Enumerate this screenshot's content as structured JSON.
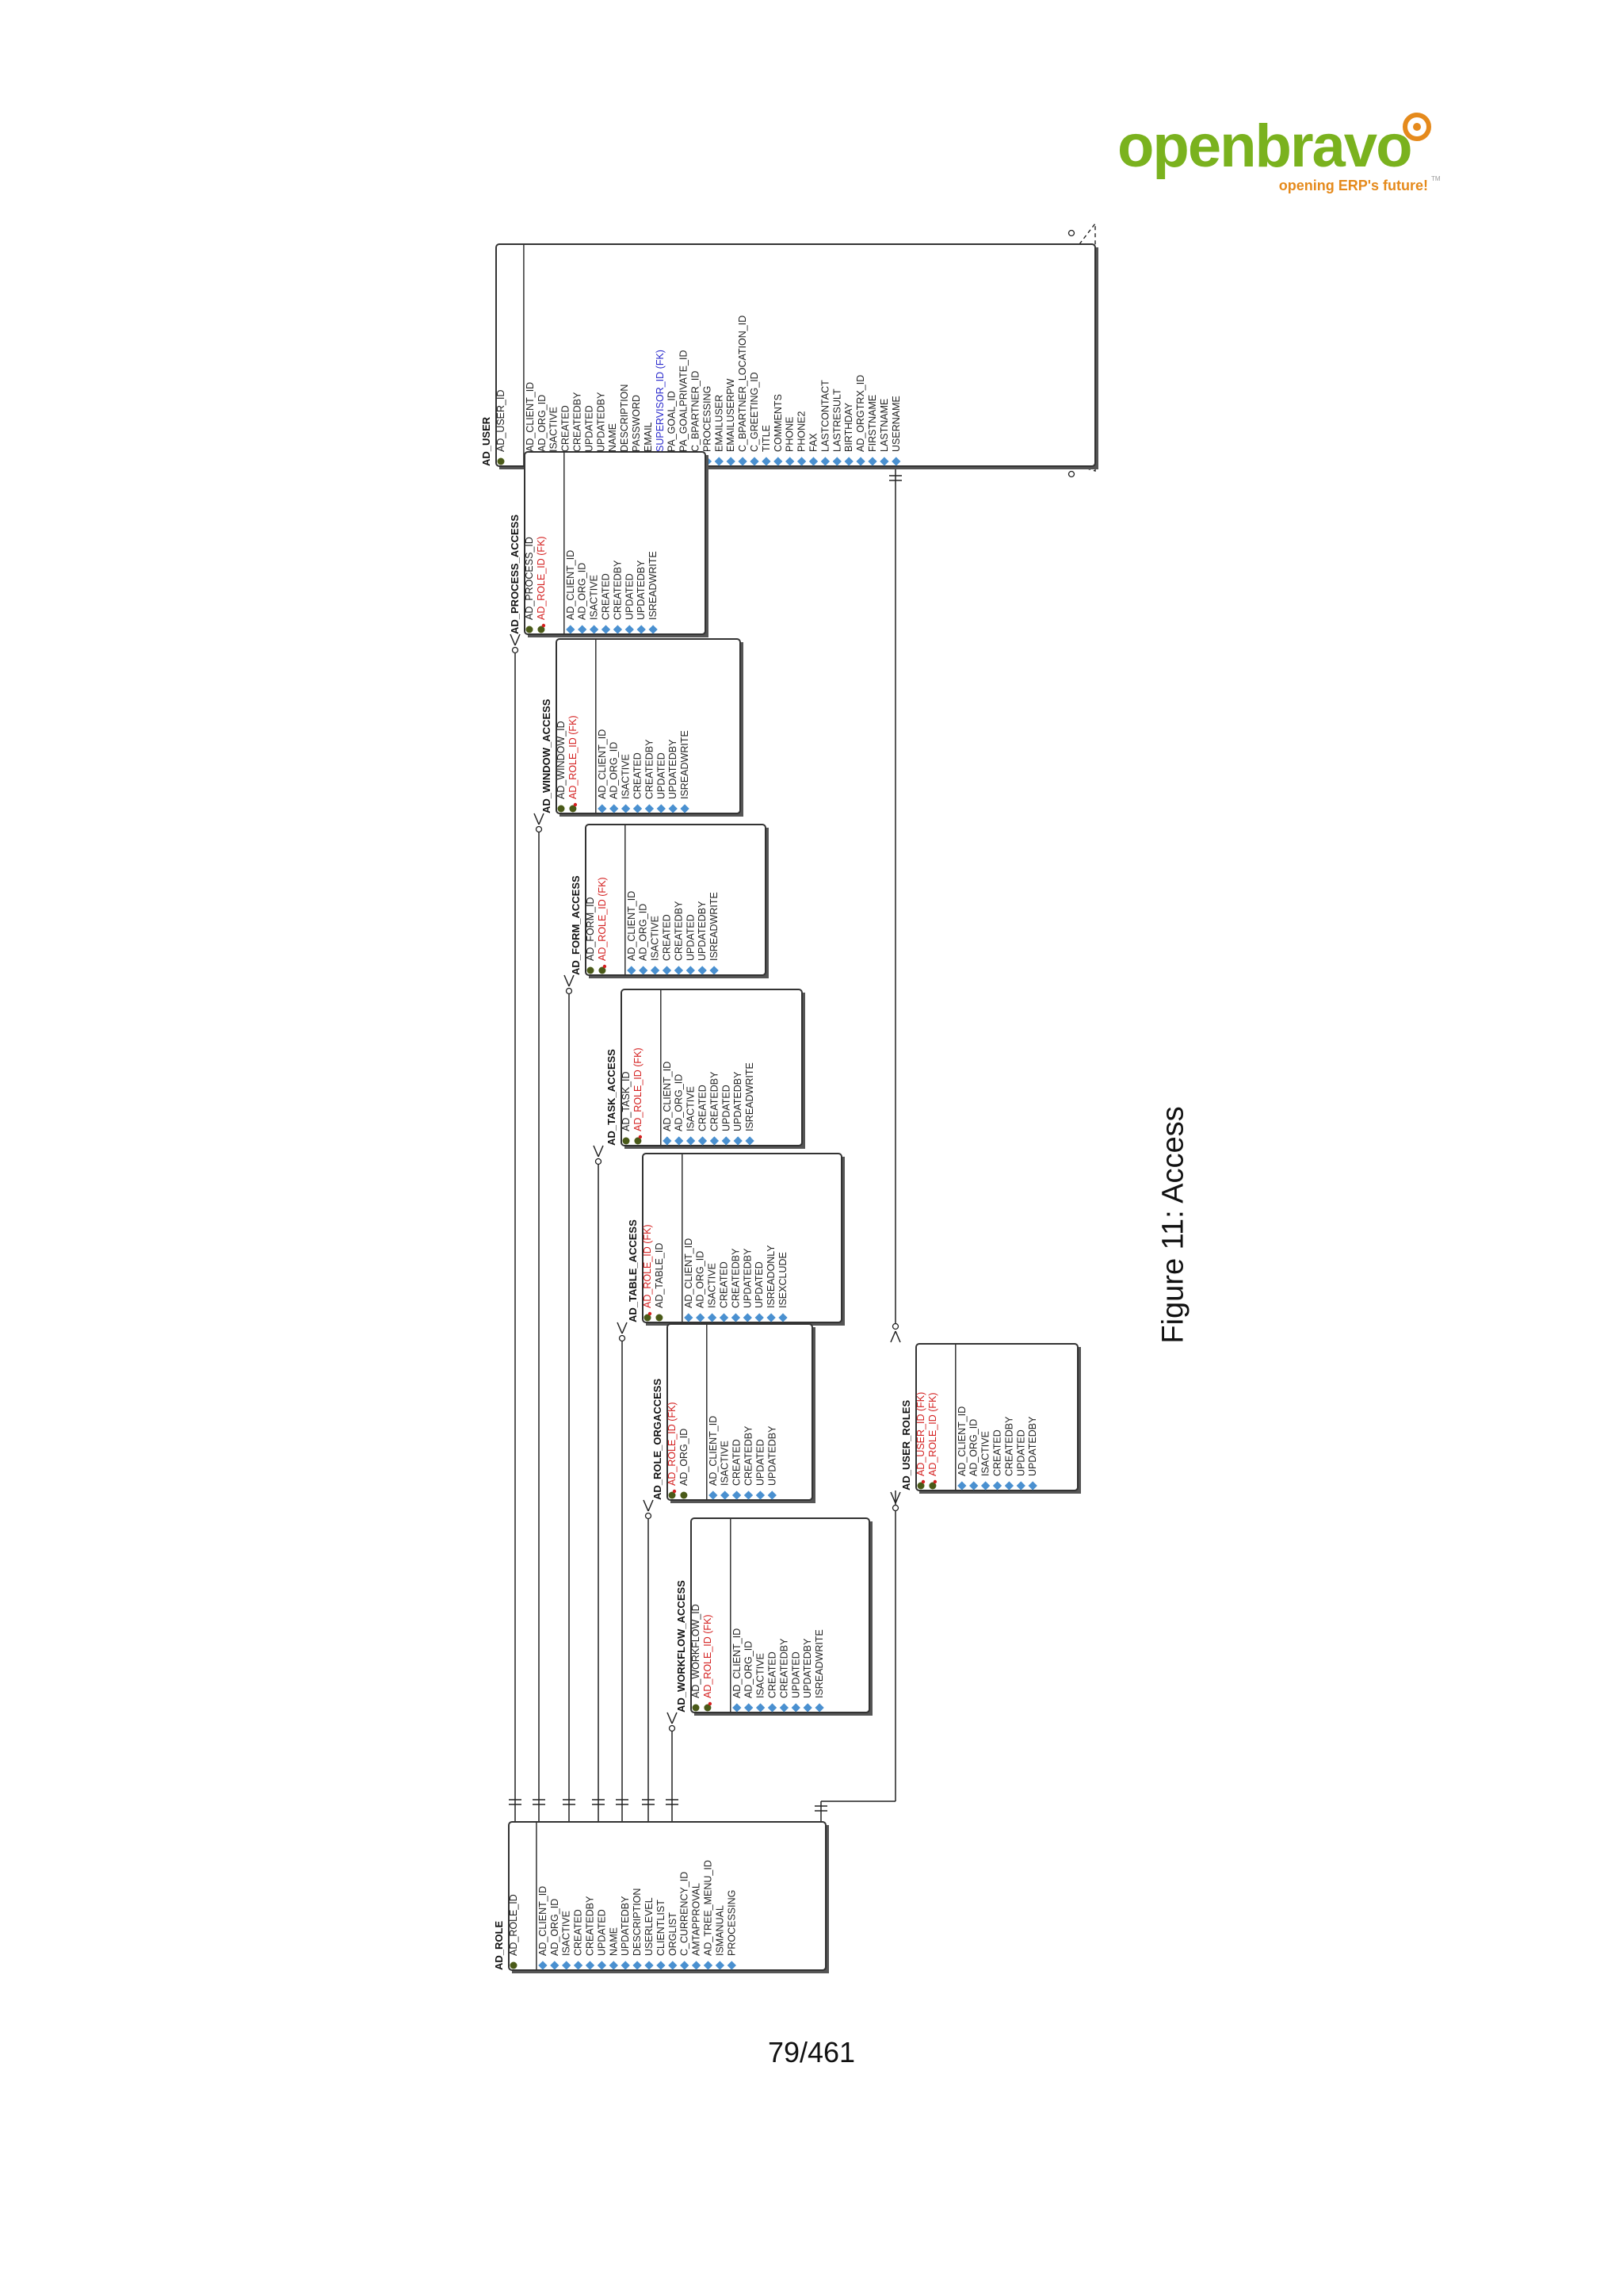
{
  "logo": {
    "wordmark": "openbravo",
    "tagline": "opening ERP's future!",
    "tm": "TM"
  },
  "caption": "Figure 11: Access",
  "page_number": "79/461",
  "colors": {
    "pk": "#4a5a18",
    "fk": "#d42020",
    "fk_blue": "#2a2acc",
    "attr": "#4a90d0",
    "line": "#222222",
    "logo_green": "#7ab21e",
    "logo_orange": "#e58a1c"
  },
  "tables": {
    "ad_user": {
      "name": "AD_USER",
      "keys": [
        {
          "label": "AD_USER_ID",
          "kind": "pk"
        }
      ],
      "columns": [
        {
          "label": "AD_CLIENT_ID"
        },
        {
          "label": "AD_ORG_ID"
        },
        {
          "label": "ISACTIVE"
        },
        {
          "label": "CREATED"
        },
        {
          "label": "CREATEDBY"
        },
        {
          "label": "UPDATED"
        },
        {
          "label": "UPDATEDBY"
        },
        {
          "label": "NAME"
        },
        {
          "label": "DESCRIPTION"
        },
        {
          "label": "PASSWORD"
        },
        {
          "label": "EMAIL"
        },
        {
          "label": "SUPERVISOR_ID (FK)",
          "kind": "fk_blue"
        },
        {
          "label": "PA_GOAL_ID"
        },
        {
          "label": "PA_GOALPRIVATE_ID"
        },
        {
          "label": "C_BPARTNER_ID"
        },
        {
          "label": "PROCESSING"
        },
        {
          "label": "EMAILUSER"
        },
        {
          "label": "EMAILUSERPW"
        },
        {
          "label": "C_BPARTNER_LOCATION_ID"
        },
        {
          "label": "C_GREETING_ID"
        },
        {
          "label": "TITLE"
        },
        {
          "label": "COMMENTS"
        },
        {
          "label": "PHONE"
        },
        {
          "label": "PHONE2"
        },
        {
          "label": "FAX"
        },
        {
          "label": "LASTCONTACT"
        },
        {
          "label": "LASTRESULT"
        },
        {
          "label": "BIRTHDAY"
        },
        {
          "label": "AD_ORGTRX_ID"
        },
        {
          "label": "FIRSTNAME"
        },
        {
          "label": "LASTNAME"
        },
        {
          "label": "USERNAME"
        }
      ]
    },
    "ad_process_access": {
      "name": "AD_PROCESS_ACCESS",
      "keys": [
        {
          "label": "AD_PROCESS_ID",
          "kind": "pk"
        },
        {
          "label": "AD_ROLE_ID (FK)",
          "kind": "fk"
        }
      ],
      "columns": [
        {
          "label": "AD_CLIENT_ID"
        },
        {
          "label": "AD_ORG_ID"
        },
        {
          "label": "ISACTIVE"
        },
        {
          "label": "CREATED"
        },
        {
          "label": "CREATEDBY"
        },
        {
          "label": "UPDATED"
        },
        {
          "label": "UPDATEDBY"
        },
        {
          "label": "ISREADWRITE"
        }
      ]
    },
    "ad_window_access": {
      "name": "AD_WINDOW_ACCESS",
      "keys": [
        {
          "label": "AD_WINDOW_ID",
          "kind": "pk"
        },
        {
          "label": "AD_ROLE_ID (FK)",
          "kind": "fk"
        }
      ],
      "columns": [
        {
          "label": "AD_CLIENT_ID"
        },
        {
          "label": "AD_ORG_ID"
        },
        {
          "label": "ISACTIVE"
        },
        {
          "label": "CREATED"
        },
        {
          "label": "CREATEDBY"
        },
        {
          "label": "UPDATED"
        },
        {
          "label": "UPDATEDBY"
        },
        {
          "label": "ISREADWRITE"
        }
      ]
    },
    "ad_form_access": {
      "name": "AD_FORM_ACCESS",
      "keys": [
        {
          "label": "AD_FORM_ID",
          "kind": "pk"
        },
        {
          "label": "AD_ROLE_ID (FK)",
          "kind": "fk"
        }
      ],
      "columns": [
        {
          "label": "AD_CLIENT_ID"
        },
        {
          "label": "AD_ORG_ID"
        },
        {
          "label": "ISACTIVE"
        },
        {
          "label": "CREATED"
        },
        {
          "label": "CREATEDBY"
        },
        {
          "label": "UPDATED"
        },
        {
          "label": "UPDATEDBY"
        },
        {
          "label": "ISREADWRITE"
        }
      ]
    },
    "ad_task_access": {
      "name": "AD_TASK_ACCESS",
      "keys": [
        {
          "label": "AD_TASK_ID",
          "kind": "pk"
        },
        {
          "label": "AD_ROLE_ID (FK)",
          "kind": "fk"
        }
      ],
      "columns": [
        {
          "label": "AD_CLIENT_ID"
        },
        {
          "label": "AD_ORG_ID"
        },
        {
          "label": "ISACTIVE"
        },
        {
          "label": "CREATED"
        },
        {
          "label": "CREATEDBY"
        },
        {
          "label": "UPDATED"
        },
        {
          "label": "UPDATEDBY"
        },
        {
          "label": "ISREADWRITE"
        }
      ]
    },
    "ad_table_access": {
      "name": "AD_TABLE_ACCESS",
      "keys": [
        {
          "label": "AD_ROLE_ID (FK)",
          "kind": "fk"
        },
        {
          "label": "AD_TABLE_ID",
          "kind": "pk"
        }
      ],
      "columns": [
        {
          "label": "AD_CLIENT_ID"
        },
        {
          "label": "AD_ORG_ID"
        },
        {
          "label": "ISACTIVE"
        },
        {
          "label": "CREATED"
        },
        {
          "label": "CREATEDBY"
        },
        {
          "label": "UPDATEDBY"
        },
        {
          "label": "UPDATED"
        },
        {
          "label": "ISREADONLY"
        },
        {
          "label": "ISEXCLUDE"
        }
      ]
    },
    "ad_role_orgaccess": {
      "name": "AD_ROLE_ORGACCESS",
      "keys": [
        {
          "label": "AD_ROLE_ID (FK)",
          "kind": "fk"
        },
        {
          "label": "AD_ORG_ID",
          "kind": "pk"
        }
      ],
      "columns": [
        {
          "label": "AD_CLIENT_ID"
        },
        {
          "label": "ISACTIVE"
        },
        {
          "label": "CREATED"
        },
        {
          "label": "CREATEDBY"
        },
        {
          "label": "UPDATED"
        },
        {
          "label": "UPDATEDBY"
        }
      ]
    },
    "ad_workflow_access": {
      "name": "AD_WORKFLOW_ACCESS",
      "keys": [
        {
          "label": "AD_WORKFLOW_ID",
          "kind": "pk"
        },
        {
          "label": "AD_ROLE_ID (FK)",
          "kind": "fk"
        }
      ],
      "columns": [
        {
          "label": "AD_CLIENT_ID"
        },
        {
          "label": "AD_ORG_ID"
        },
        {
          "label": "ISACTIVE"
        },
        {
          "label": "CREATED"
        },
        {
          "label": "CREATEDBY"
        },
        {
          "label": "UPDATED"
        },
        {
          "label": "UPDATEDBY"
        },
        {
          "label": "ISREADWRITE"
        }
      ]
    },
    "ad_user_roles": {
      "name": "AD_USER_ROLES",
      "keys": [
        {
          "label": "AD_USER_ID (FK)",
          "kind": "fk"
        },
        {
          "label": "AD_ROLE_ID (FK)",
          "kind": "fk"
        }
      ],
      "columns": [
        {
          "label": "AD_CLIENT_ID"
        },
        {
          "label": "AD_ORG_ID"
        },
        {
          "label": "ISACTIVE"
        },
        {
          "label": "CREATED"
        },
        {
          "label": "CREATEDBY"
        },
        {
          "label": "UPDATED"
        },
        {
          "label": "UPDATEDBY"
        }
      ]
    },
    "ad_role": {
      "name": "AD_ROLE",
      "keys": [
        {
          "label": "AD_ROLE_ID",
          "kind": "pk"
        }
      ],
      "columns": [
        {
          "label": "AD_CLIENT_ID"
        },
        {
          "label": "AD_ORG_ID"
        },
        {
          "label": "ISACTIVE"
        },
        {
          "label": "CREATED"
        },
        {
          "label": "CREATEDBY"
        },
        {
          "label": "UPDATED"
        },
        {
          "label": "NAME"
        },
        {
          "label": "UPDATEDBY"
        },
        {
          "label": "DESCRIPTION"
        },
        {
          "label": "USERLEVEL"
        },
        {
          "label": "CLIENTLIST"
        },
        {
          "label": "ORGLIST"
        },
        {
          "label": "C_CURRENCY_ID"
        },
        {
          "label": "AMTAPPROVAL"
        },
        {
          "label": "AD_TREE_MENU_ID"
        },
        {
          "label": "ISMANUAL"
        },
        {
          "label": "PROCESSING"
        }
      ]
    }
  }
}
